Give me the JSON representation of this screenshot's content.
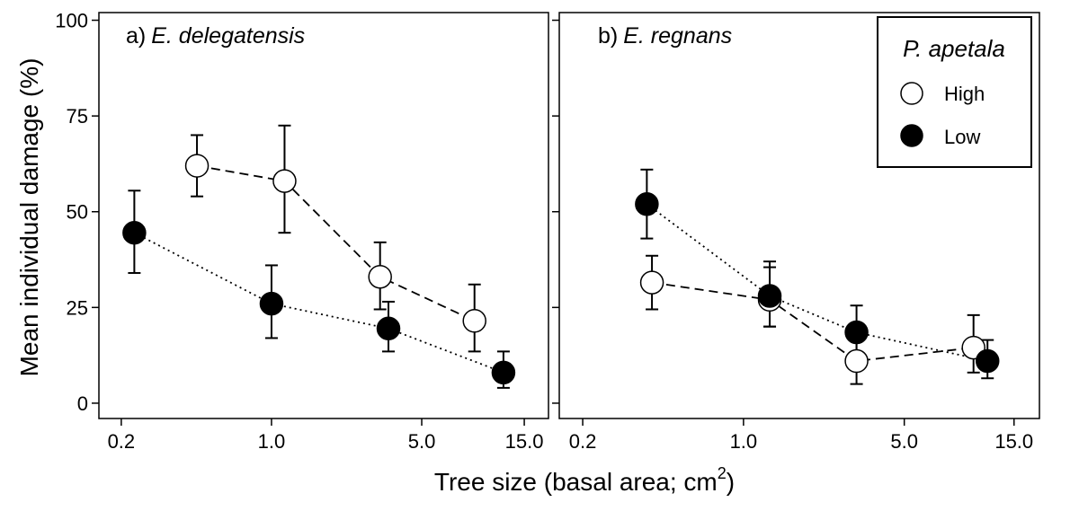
{
  "chart_data": {
    "type": "scatter",
    "ylabel": "Mean individual damage (%)",
    "xlabel": "Tree size (basal area; cm",
    "xlabel_superscript": "2",
    "xlabel_suffix": ")",
    "x_scale": "log",
    "xlim": [
      0.17,
      18
    ],
    "ylim": [
      -4,
      102
    ],
    "x_ticks": [
      0.2,
      1.0,
      5.0,
      15.0
    ],
    "x_tick_labels": [
      "0.2",
      "1.0",
      "5.0",
      "15.0"
    ],
    "y_ticks": [
      0,
      25,
      50,
      75,
      100
    ],
    "y_tick_labels": [
      "0",
      "25",
      "50",
      "75",
      "100"
    ],
    "legend": {
      "title": "P. apetala",
      "placement": "top-right",
      "entries": [
        {
          "name": "High",
          "fill": "#ffffff"
        },
        {
          "name": "Low",
          "fill": "#000000"
        }
      ]
    },
    "panels": [
      {
        "label": "a)",
        "species": "E. delegatensis",
        "series": [
          {
            "name": "High",
            "fill": "#ffffff",
            "line": "dashed",
            "points": [
              {
                "x": 0.45,
                "y": 62,
                "lower": 54,
                "upper": 70
              },
              {
                "x": 1.15,
                "y": 58,
                "lower": 44.5,
                "upper": 72.5
              },
              {
                "x": 3.2,
                "y": 33,
                "lower": 24.5,
                "upper": 42
              },
              {
                "x": 8.8,
                "y": 21.5,
                "lower": 13.5,
                "upper": 31
              }
            ]
          },
          {
            "name": "Low",
            "fill": "#000000",
            "line": "dotted",
            "points": [
              {
                "x": 0.23,
                "y": 44.5,
                "lower": 34,
                "upper": 55.5
              },
              {
                "x": 1.0,
                "y": 26,
                "lower": 17,
                "upper": 36
              },
              {
                "x": 3.5,
                "y": 19.5,
                "lower": 13.5,
                "upper": 26.5
              },
              {
                "x": 12.0,
                "y": 8,
                "lower": 4,
                "upper": 13.5
              }
            ]
          }
        ]
      },
      {
        "label": "b)",
        "species": "E. regnans",
        "series": [
          {
            "name": "High",
            "fill": "#ffffff",
            "line": "dashed",
            "points": [
              {
                "x": 0.4,
                "y": 31.5,
                "lower": 24.5,
                "upper": 38.5
              },
              {
                "x": 1.3,
                "y": 27,
                "lower": 20,
                "upper": 35.5
              },
              {
                "x": 3.1,
                "y": 11,
                "lower": 5,
                "upper": 18
              },
              {
                "x": 10.0,
                "y": 14.5,
                "lower": 8,
                "upper": 23
              }
            ]
          },
          {
            "name": "Low",
            "fill": "#000000",
            "line": "dotted",
            "points": [
              {
                "x": 0.38,
                "y": 52,
                "lower": 43,
                "upper": 61
              },
              {
                "x": 1.3,
                "y": 28,
                "lower": 20,
                "upper": 37
              },
              {
                "x": 3.1,
                "y": 18.5,
                "lower": 12,
                "upper": 25.5
              },
              {
                "x": 11.5,
                "y": 11,
                "lower": 6.5,
                "upper": 16.5
              }
            ]
          }
        ]
      }
    ]
  }
}
